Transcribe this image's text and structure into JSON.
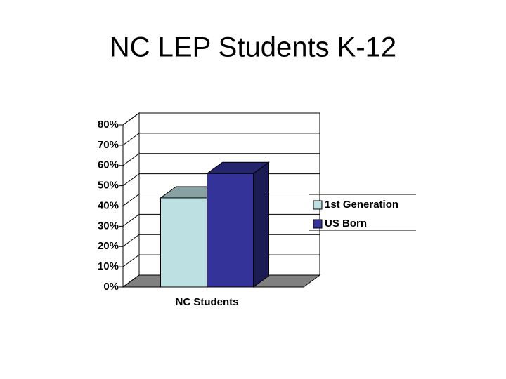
{
  "chart_data": {
    "type": "bar3d",
    "title": "NC LEP Students K-12",
    "categories": [
      "NC Students"
    ],
    "series": [
      {
        "name": "1st Generation",
        "color": "#bde0e3",
        "values": [
          44
        ]
      },
      {
        "name": "US Born",
        "color": "#333399",
        "values": [
          56
        ]
      }
    ],
    "ylim": [
      0,
      80
    ],
    "yticks": [
      {
        "value": 0,
        "label": "0%"
      },
      {
        "value": 10,
        "label": "10%"
      },
      {
        "value": 20,
        "label": "20%"
      },
      {
        "value": 30,
        "label": "30%"
      },
      {
        "value": 40,
        "label": "40%"
      },
      {
        "value": 50,
        "label": "50%"
      },
      {
        "value": 60,
        "label": "60%"
      },
      {
        "value": 70,
        "label": "70%"
      },
      {
        "value": 80,
        "label": "80%"
      }
    ],
    "grid": true,
    "legend": "right"
  }
}
